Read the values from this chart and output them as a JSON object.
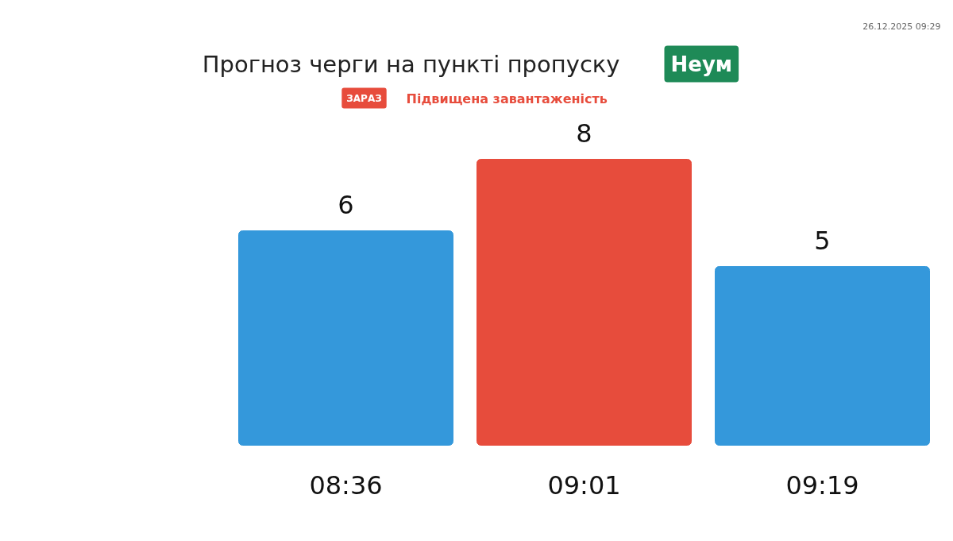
{
  "chart_data": {
    "type": "bar",
    "title": "Прогноз черги на пункті пропуску",
    "categories": [
      "08:36",
      "09:01",
      "09:19"
    ],
    "values": [
      6,
      8,
      5
    ],
    "colors": [
      "#3498db",
      "#e74c3c",
      "#3498db"
    ],
    "data_labels": true,
    "grid": false,
    "annotations": [
      "Неум",
      "ЗАРАЗ",
      "Підвищена завантаженість",
      "26.12.2025 09:29"
    ]
  }
}
